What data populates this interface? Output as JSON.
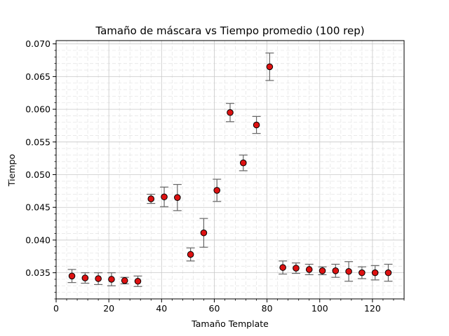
{
  "chart_data": {
    "type": "scatter",
    "title": "Tamaño de máscara vs Tiempo promedio (100 rep)",
    "xlabel": "Tamaño Template",
    "ylabel": "Tiempo",
    "xlim": [
      0,
      132
    ],
    "ylim": [
      0.031,
      0.0705
    ],
    "x_ticks": [
      {
        "value": 0,
        "label": "0"
      },
      {
        "value": 20,
        "label": "20"
      },
      {
        "value": 40,
        "label": "40"
      },
      {
        "value": 60,
        "label": "60"
      },
      {
        "value": 80,
        "label": "80"
      },
      {
        "value": 100,
        "label": "100"
      },
      {
        "value": 120,
        "label": "120"
      }
    ],
    "y_ticks": [
      {
        "value": 0.035,
        "label": "0.035"
      },
      {
        "value": 0.04,
        "label": "0.040"
      },
      {
        "value": 0.045,
        "label": "0.045"
      },
      {
        "value": 0.05,
        "label": "0.050"
      },
      {
        "value": 0.055,
        "label": "0.055"
      },
      {
        "value": 0.06,
        "label": "0.060"
      },
      {
        "value": 0.065,
        "label": "0.065"
      },
      {
        "value": 0.07,
        "label": "0.070"
      }
    ],
    "grid": true,
    "marker_color": "#dd1111",
    "errorbar_color": "#666666",
    "points": [
      {
        "x": 6,
        "y": 0.0345,
        "err": 0.001
      },
      {
        "x": 11,
        "y": 0.0342,
        "err": 0.0008
      },
      {
        "x": 16,
        "y": 0.0341,
        "err": 0.0009
      },
      {
        "x": 21,
        "y": 0.034,
        "err": 0.001
      },
      {
        "x": 26,
        "y": 0.0338,
        "err": 0.0005
      },
      {
        "x": 31,
        "y": 0.0337,
        "err": 0.0008
      },
      {
        "x": 36,
        "y": 0.0463,
        "err": 0.0007
      },
      {
        "x": 41,
        "y": 0.0466,
        "err": 0.0015
      },
      {
        "x": 46,
        "y": 0.0465,
        "err": 0.002
      },
      {
        "x": 51,
        "y": 0.0378,
        "err": 0.001
      },
      {
        "x": 56,
        "y": 0.0411,
        "err": 0.0022
      },
      {
        "x": 61,
        "y": 0.0476,
        "err": 0.0017
      },
      {
        "x": 66,
        "y": 0.0595,
        "err": 0.0014
      },
      {
        "x": 71,
        "y": 0.0518,
        "err": 0.0012
      },
      {
        "x": 76,
        "y": 0.0576,
        "err": 0.0013
      },
      {
        "x": 81,
        "y": 0.0665,
        "err": 0.0021
      },
      {
        "x": 86,
        "y": 0.0358,
        "err": 0.001
      },
      {
        "x": 91,
        "y": 0.0357,
        "err": 0.0008
      },
      {
        "x": 96,
        "y": 0.0355,
        "err": 0.0008
      },
      {
        "x": 101,
        "y": 0.0353,
        "err": 0.0006
      },
      {
        "x": 106,
        "y": 0.0353,
        "err": 0.001
      },
      {
        "x": 111,
        "y": 0.0352,
        "err": 0.0015
      },
      {
        "x": 116,
        "y": 0.035,
        "err": 0.0009
      },
      {
        "x": 121,
        "y": 0.035,
        "err": 0.0011
      },
      {
        "x": 126,
        "y": 0.035,
        "err": 0.0013
      }
    ]
  }
}
